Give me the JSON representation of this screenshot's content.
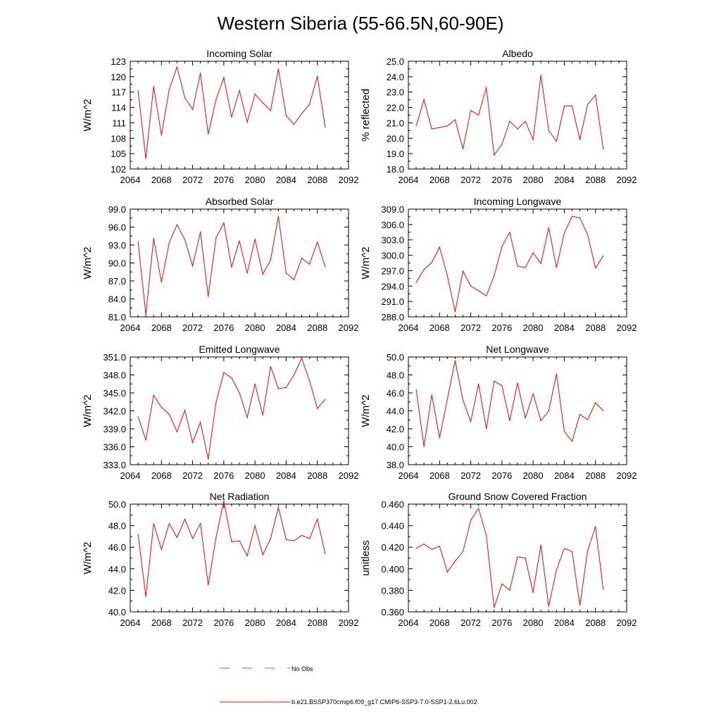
{
  "figure": {
    "title": "Western Siberia (55-66.5N,60-90E)",
    "line_color": "#ff0000",
    "obs_color": "#6a6ad8"
  },
  "legend": {
    "obs_label": "No Obs",
    "model_label": "b.e21.BSSP370cmip6.f09_g17.CMIP6-SSP3-7.0-SSP1-2.6Lu.002"
  },
  "chart_data": [
    {
      "type": "line",
      "title": "Incoming Solar",
      "ylabel": "W/m^2",
      "xlim": [
        2064,
        2092
      ],
      "ylim": [
        102,
        123
      ],
      "x_ticks": [
        2064,
        2068,
        2072,
        2076,
        2080,
        2084,
        2088,
        2092
      ],
      "y_ticks": [
        102,
        105,
        108,
        111,
        114,
        117,
        120,
        123
      ],
      "y_tick_labels": [
        "102",
        "105",
        "108",
        "111",
        "114",
        "117",
        "120",
        "123"
      ],
      "x": [
        2065,
        2066,
        2067,
        2068,
        2069,
        2070,
        2071,
        2072,
        2073,
        2074,
        2075,
        2076,
        2077,
        2078,
        2079,
        2080,
        2081,
        2082,
        2083,
        2084,
        2085,
        2086,
        2087,
        2088,
        2089
      ],
      "series": [
        {
          "values": [
            117.3,
            104.0,
            118.1,
            108.6,
            117.5,
            121.9,
            115.9,
            113.6,
            120.7,
            108.8,
            115.5,
            119.8,
            112.1,
            117.3,
            111.1,
            116.6,
            114.9,
            113.4,
            121.5,
            112.4,
            110.7,
            112.8,
            114.6,
            120.1,
            110.2
          ]
        }
      ]
    },
    {
      "type": "line",
      "title": "Albedo",
      "ylabel": "% reflected",
      "xlim": [
        2064,
        2092
      ],
      "ylim": [
        18.0,
        25.0
      ],
      "x_ticks": [
        2064,
        2068,
        2072,
        2076,
        2080,
        2084,
        2088,
        2092
      ],
      "y_ticks": [
        18,
        19,
        20,
        21,
        22,
        23,
        24,
        25
      ],
      "y_tick_labels": [
        "18.0",
        "19.0",
        "20.0",
        "21.0",
        "22.0",
        "23.0",
        "24.0",
        "25.0"
      ],
      "x": [
        2065,
        2066,
        2067,
        2068,
        2069,
        2070,
        2071,
        2072,
        2073,
        2074,
        2075,
        2076,
        2077,
        2078,
        2079,
        2080,
        2081,
        2082,
        2083,
        2084,
        2085,
        2086,
        2087,
        2088,
        2089
      ],
      "series": [
        {
          "values": [
            20.8,
            22.5,
            20.6,
            20.7,
            20.8,
            21.2,
            19.3,
            21.8,
            21.5,
            23.3,
            18.9,
            19.6,
            21.1,
            20.6,
            21.1,
            19.9,
            24.1,
            20.5,
            19.8,
            22.1,
            22.1,
            19.9,
            22.2,
            22.8,
            19.3
          ]
        }
      ]
    },
    {
      "type": "line",
      "title": "Absorbed Solar",
      "ylabel": "W/m^2",
      "xlim": [
        2064,
        2092
      ],
      "ylim": [
        81.0,
        99.0
      ],
      "x_ticks": [
        2064,
        2068,
        2072,
        2076,
        2080,
        2084,
        2088,
        2092
      ],
      "y_ticks": [
        81,
        84,
        87,
        90,
        93,
        96,
        99
      ],
      "y_tick_labels": [
        "81.0",
        "84.0",
        "87.0",
        "90.0",
        "93.0",
        "96.0",
        "99.0"
      ],
      "x": [
        2065,
        2066,
        2067,
        2068,
        2069,
        2070,
        2071,
        2072,
        2073,
        2074,
        2075,
        2076,
        2077,
        2078,
        2079,
        2080,
        2081,
        2082,
        2083,
        2084,
        2085,
        2086,
        2087,
        2088,
        2089
      ],
      "series": [
        {
          "values": [
            93.6,
            81.4,
            94.1,
            86.8,
            93.4,
            96.4,
            93.9,
            89.5,
            95.2,
            84.4,
            94.2,
            96.7,
            89.3,
            93.7,
            88.3,
            94.0,
            88.1,
            90.5,
            97.8,
            88.3,
            87.2,
            90.8,
            89.8,
            93.5,
            89.4
          ]
        }
      ]
    },
    {
      "type": "line",
      "title": "Incoming Longwave",
      "ylabel": "W/m^2",
      "xlim": [
        2064,
        2092
      ],
      "ylim": [
        288.0,
        309.0
      ],
      "x_ticks": [
        2064,
        2068,
        2072,
        2076,
        2080,
        2084,
        2088,
        2092
      ],
      "y_ticks": [
        288,
        291,
        294,
        297,
        300,
        303,
        306,
        309
      ],
      "y_tick_labels": [
        "288.0",
        "291.0",
        "294.0",
        "297.0",
        "300.0",
        "303.0",
        "306.0",
        "309.0"
      ],
      "x": [
        2065,
        2066,
        2067,
        2068,
        2069,
        2070,
        2071,
        2072,
        2073,
        2074,
        2075,
        2076,
        2077,
        2078,
        2079,
        2080,
        2081,
        2082,
        2083,
        2084,
        2085,
        2086,
        2087,
        2088,
        2089
      ],
      "series": [
        {
          "values": [
            294.7,
            297.2,
            298.6,
            301.6,
            296.0,
            289.0,
            296.9,
            294.0,
            293.1,
            292.1,
            296.0,
            301.7,
            304.5,
            297.9,
            297.6,
            300.5,
            298.4,
            305.4,
            297.6,
            304.3,
            307.6,
            307.3,
            304.0,
            297.5,
            299.9
          ]
        }
      ]
    },
    {
      "type": "line",
      "title": "Emitted Longwave",
      "ylabel": "W/m^2",
      "xlim": [
        2064,
        2092
      ],
      "ylim": [
        333.0,
        351.0
      ],
      "x_ticks": [
        2064,
        2068,
        2072,
        2076,
        2080,
        2084,
        2088,
        2092
      ],
      "y_ticks": [
        333,
        336,
        339,
        342,
        345,
        348,
        351
      ],
      "y_tick_labels": [
        "333.0",
        "336.0",
        "339.0",
        "342.0",
        "345.0",
        "348.0",
        "351.0"
      ],
      "x": [
        2065,
        2066,
        2067,
        2068,
        2069,
        2070,
        2071,
        2072,
        2073,
        2074,
        2075,
        2076,
        2077,
        2078,
        2079,
        2080,
        2081,
        2082,
        2083,
        2084,
        2085,
        2086,
        2087,
        2088,
        2089
      ],
      "series": [
        {
          "values": [
            341.0,
            337.1,
            344.6,
            342.6,
            341.4,
            338.5,
            342.1,
            336.7,
            340.1,
            333.9,
            343.4,
            348.4,
            347.5,
            345.0,
            340.9,
            346.5,
            341.3,
            349.4,
            345.7,
            345.9,
            348.0,
            350.8,
            347.0,
            342.4,
            343.9
          ]
        }
      ]
    },
    {
      "type": "line",
      "title": "Net Longwave",
      "ylabel": "W/m^2",
      "xlim": [
        2064,
        2092
      ],
      "ylim": [
        38.0,
        50.0
      ],
      "x_ticks": [
        2064,
        2068,
        2072,
        2076,
        2080,
        2084,
        2088,
        2092
      ],
      "y_ticks": [
        38,
        40,
        42,
        44,
        46,
        48,
        50
      ],
      "y_tick_labels": [
        "38.0",
        "40.0",
        "42.0",
        "44.0",
        "46.0",
        "48.0",
        "50.0"
      ],
      "x": [
        2065,
        2066,
        2067,
        2068,
        2069,
        2070,
        2071,
        2072,
        2073,
        2074,
        2075,
        2076,
        2077,
        2078,
        2079,
        2080,
        2081,
        2082,
        2083,
        2084,
        2085,
        2086,
        2087,
        2088,
        2089
      ],
      "series": [
        {
          "values": [
            46.4,
            40.0,
            45.8,
            41.0,
            45.3,
            49.6,
            45.2,
            42.8,
            47.0,
            42.0,
            47.3,
            46.8,
            42.9,
            47.1,
            43.2,
            45.9,
            42.9,
            44.0,
            48.1,
            41.7,
            40.6,
            43.6,
            43.0,
            44.9,
            44.0
          ]
        }
      ]
    },
    {
      "type": "line",
      "title": "Net Radiation",
      "ylabel": "W/m^2",
      "xlim": [
        2064,
        2092
      ],
      "ylim": [
        40.0,
        50.0
      ],
      "x_ticks": [
        2064,
        2068,
        2072,
        2076,
        2080,
        2084,
        2088,
        2092
      ],
      "y_ticks": [
        40,
        42,
        44,
        46,
        48,
        50
      ],
      "y_tick_labels": [
        "40.0",
        "42.0",
        "44.0",
        "46.0",
        "48.0",
        "50.0"
      ],
      "x": [
        2065,
        2066,
        2067,
        2068,
        2069,
        2070,
        2071,
        2072,
        2073,
        2074,
        2075,
        2076,
        2077,
        2078,
        2079,
        2080,
        2081,
        2082,
        2083,
        2084,
        2085,
        2086,
        2087,
        2088,
        2089
      ],
      "series": [
        {
          "values": [
            47.2,
            41.4,
            48.2,
            45.8,
            48.2,
            46.9,
            48.6,
            46.8,
            48.2,
            42.5,
            46.9,
            50.3,
            46.5,
            46.6,
            45.2,
            48.0,
            45.3,
            46.8,
            49.7,
            46.7,
            46.6,
            47.1,
            46.8,
            48.6,
            45.4
          ]
        }
      ]
    },
    {
      "type": "line",
      "title": "Ground Snow Covered Fraction",
      "ylabel": "unitless",
      "xlim": [
        2064,
        2092
      ],
      "ylim": [
        0.36,
        0.46
      ],
      "x_ticks": [
        2064,
        2068,
        2072,
        2076,
        2080,
        2084,
        2088,
        2092
      ],
      "y_ticks": [
        0.36,
        0.38,
        0.4,
        0.42,
        0.44,
        0.46
      ],
      "y_tick_labels": [
        "0.360",
        "0.380",
        "0.400",
        "0.420",
        "0.440",
        "0.460"
      ],
      "x": [
        2065,
        2066,
        2067,
        2068,
        2069,
        2070,
        2071,
        2072,
        2073,
        2074,
        2075,
        2076,
        2077,
        2078,
        2079,
        2080,
        2081,
        2082,
        2083,
        2084,
        2085,
        2086,
        2087,
        2088,
        2089
      ],
      "series": [
        {
          "values": [
            0.419,
            0.423,
            0.418,
            0.421,
            0.397,
            0.407,
            0.416,
            0.445,
            0.456,
            0.431,
            0.364,
            0.386,
            0.38,
            0.411,
            0.41,
            0.378,
            0.422,
            0.365,
            0.399,
            0.419,
            0.416,
            0.366,
            0.417,
            0.439,
            0.381
          ]
        }
      ]
    }
  ]
}
